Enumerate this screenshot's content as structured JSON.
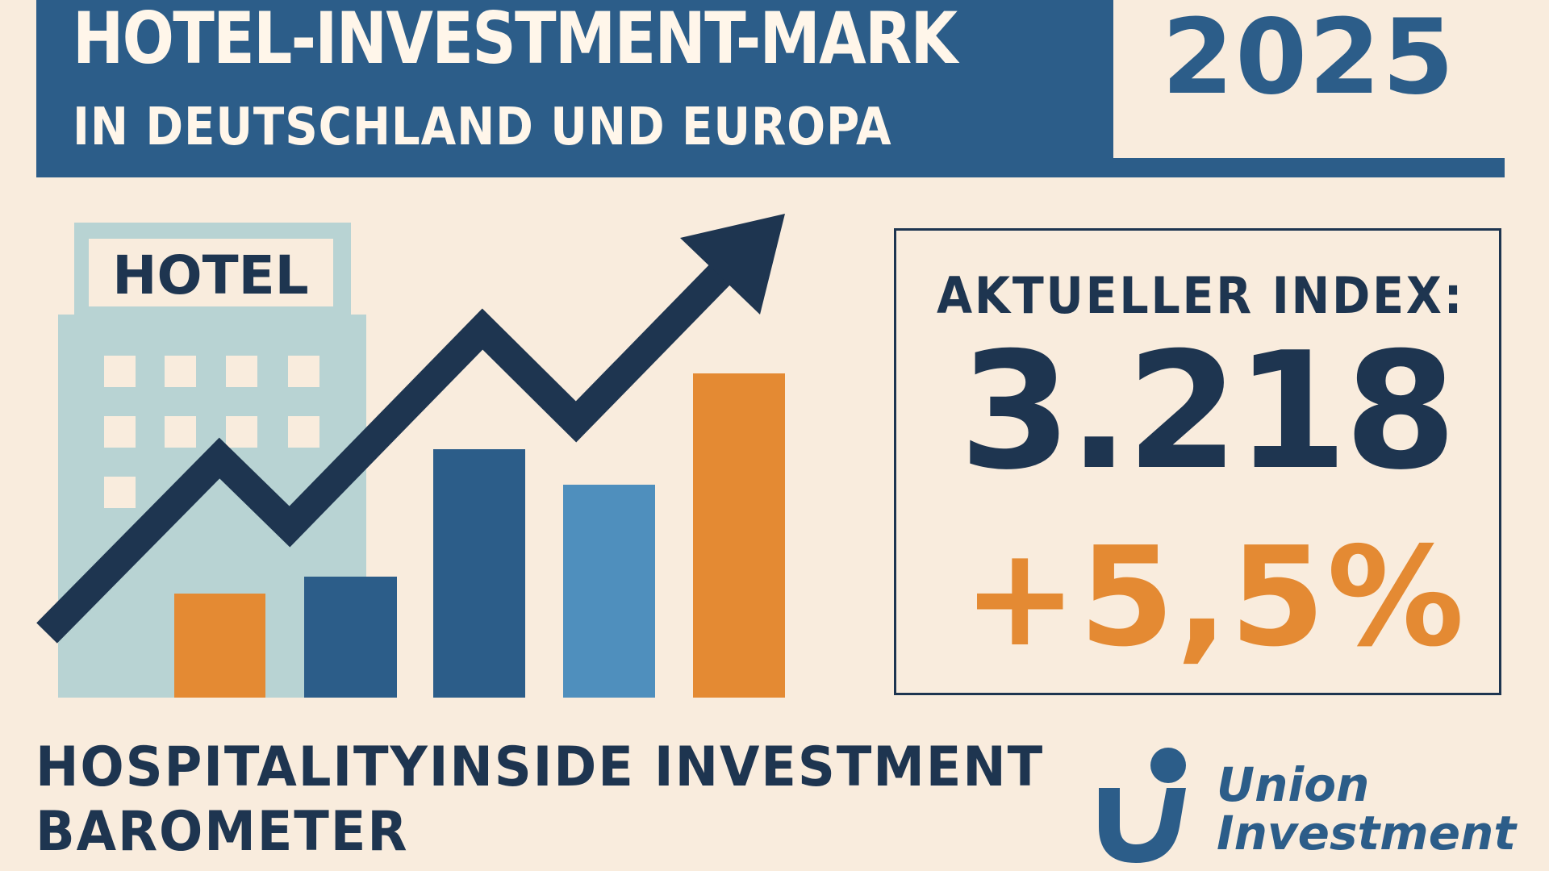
{
  "header": {
    "title_line1": "HOTEL-INVESTMENT-MARK",
    "title_line2": "IN DEUTSCHLAND UND EUROPA",
    "year": "2025"
  },
  "illustration": {
    "building_sign": "HOTEL",
    "bar_colors": [
      "#e48a33",
      "#2c5d89",
      "#2c5d89",
      "#4f8fbd",
      "#e48a33"
    ],
    "line_color": "#1e3550",
    "building_color": "#b8d3d3"
  },
  "index": {
    "label": "AKTUELLER INDEX:",
    "value": "3.218",
    "change": "+5,5%"
  },
  "footer": {
    "title_line1": "HOSPITALITYINSIDE INVESTMENT",
    "title_line2": "BAROMETER"
  },
  "logo": {
    "line1": "Union",
    "line2": "Investment"
  },
  "colors": {
    "background": "#f9ecdd",
    "brand_blue": "#2c5d89",
    "dark_navy": "#1e3550",
    "accent_orange": "#e48a33"
  }
}
